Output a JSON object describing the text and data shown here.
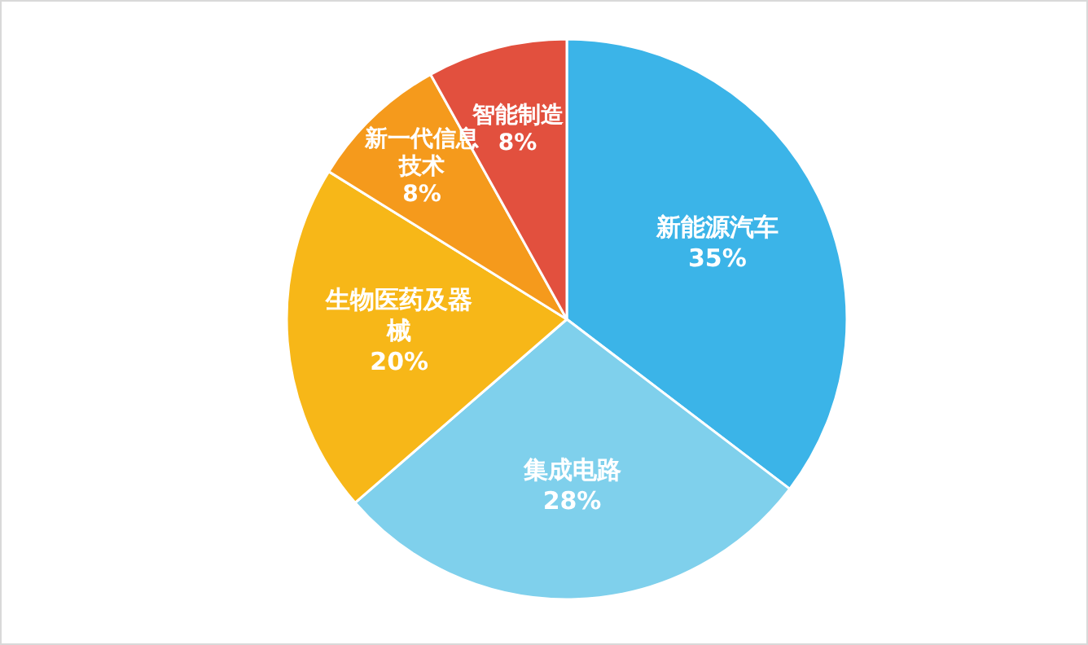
{
  "chart_data": {
    "type": "pie",
    "categories": [
      "新能源汽车",
      "集成电路",
      "生物医药及器械",
      "新一代信息技术",
      "智能制造"
    ],
    "values": [
      35,
      28,
      20,
      8,
      8
    ],
    "value_labels": [
      "35%",
      "28%",
      "20%",
      "8%",
      "8%"
    ],
    "colors": [
      "#3bb4e8",
      "#7fd0ec",
      "#f7b718",
      "#f59a1c",
      "#e2503e"
    ],
    "data_labels": true
  }
}
